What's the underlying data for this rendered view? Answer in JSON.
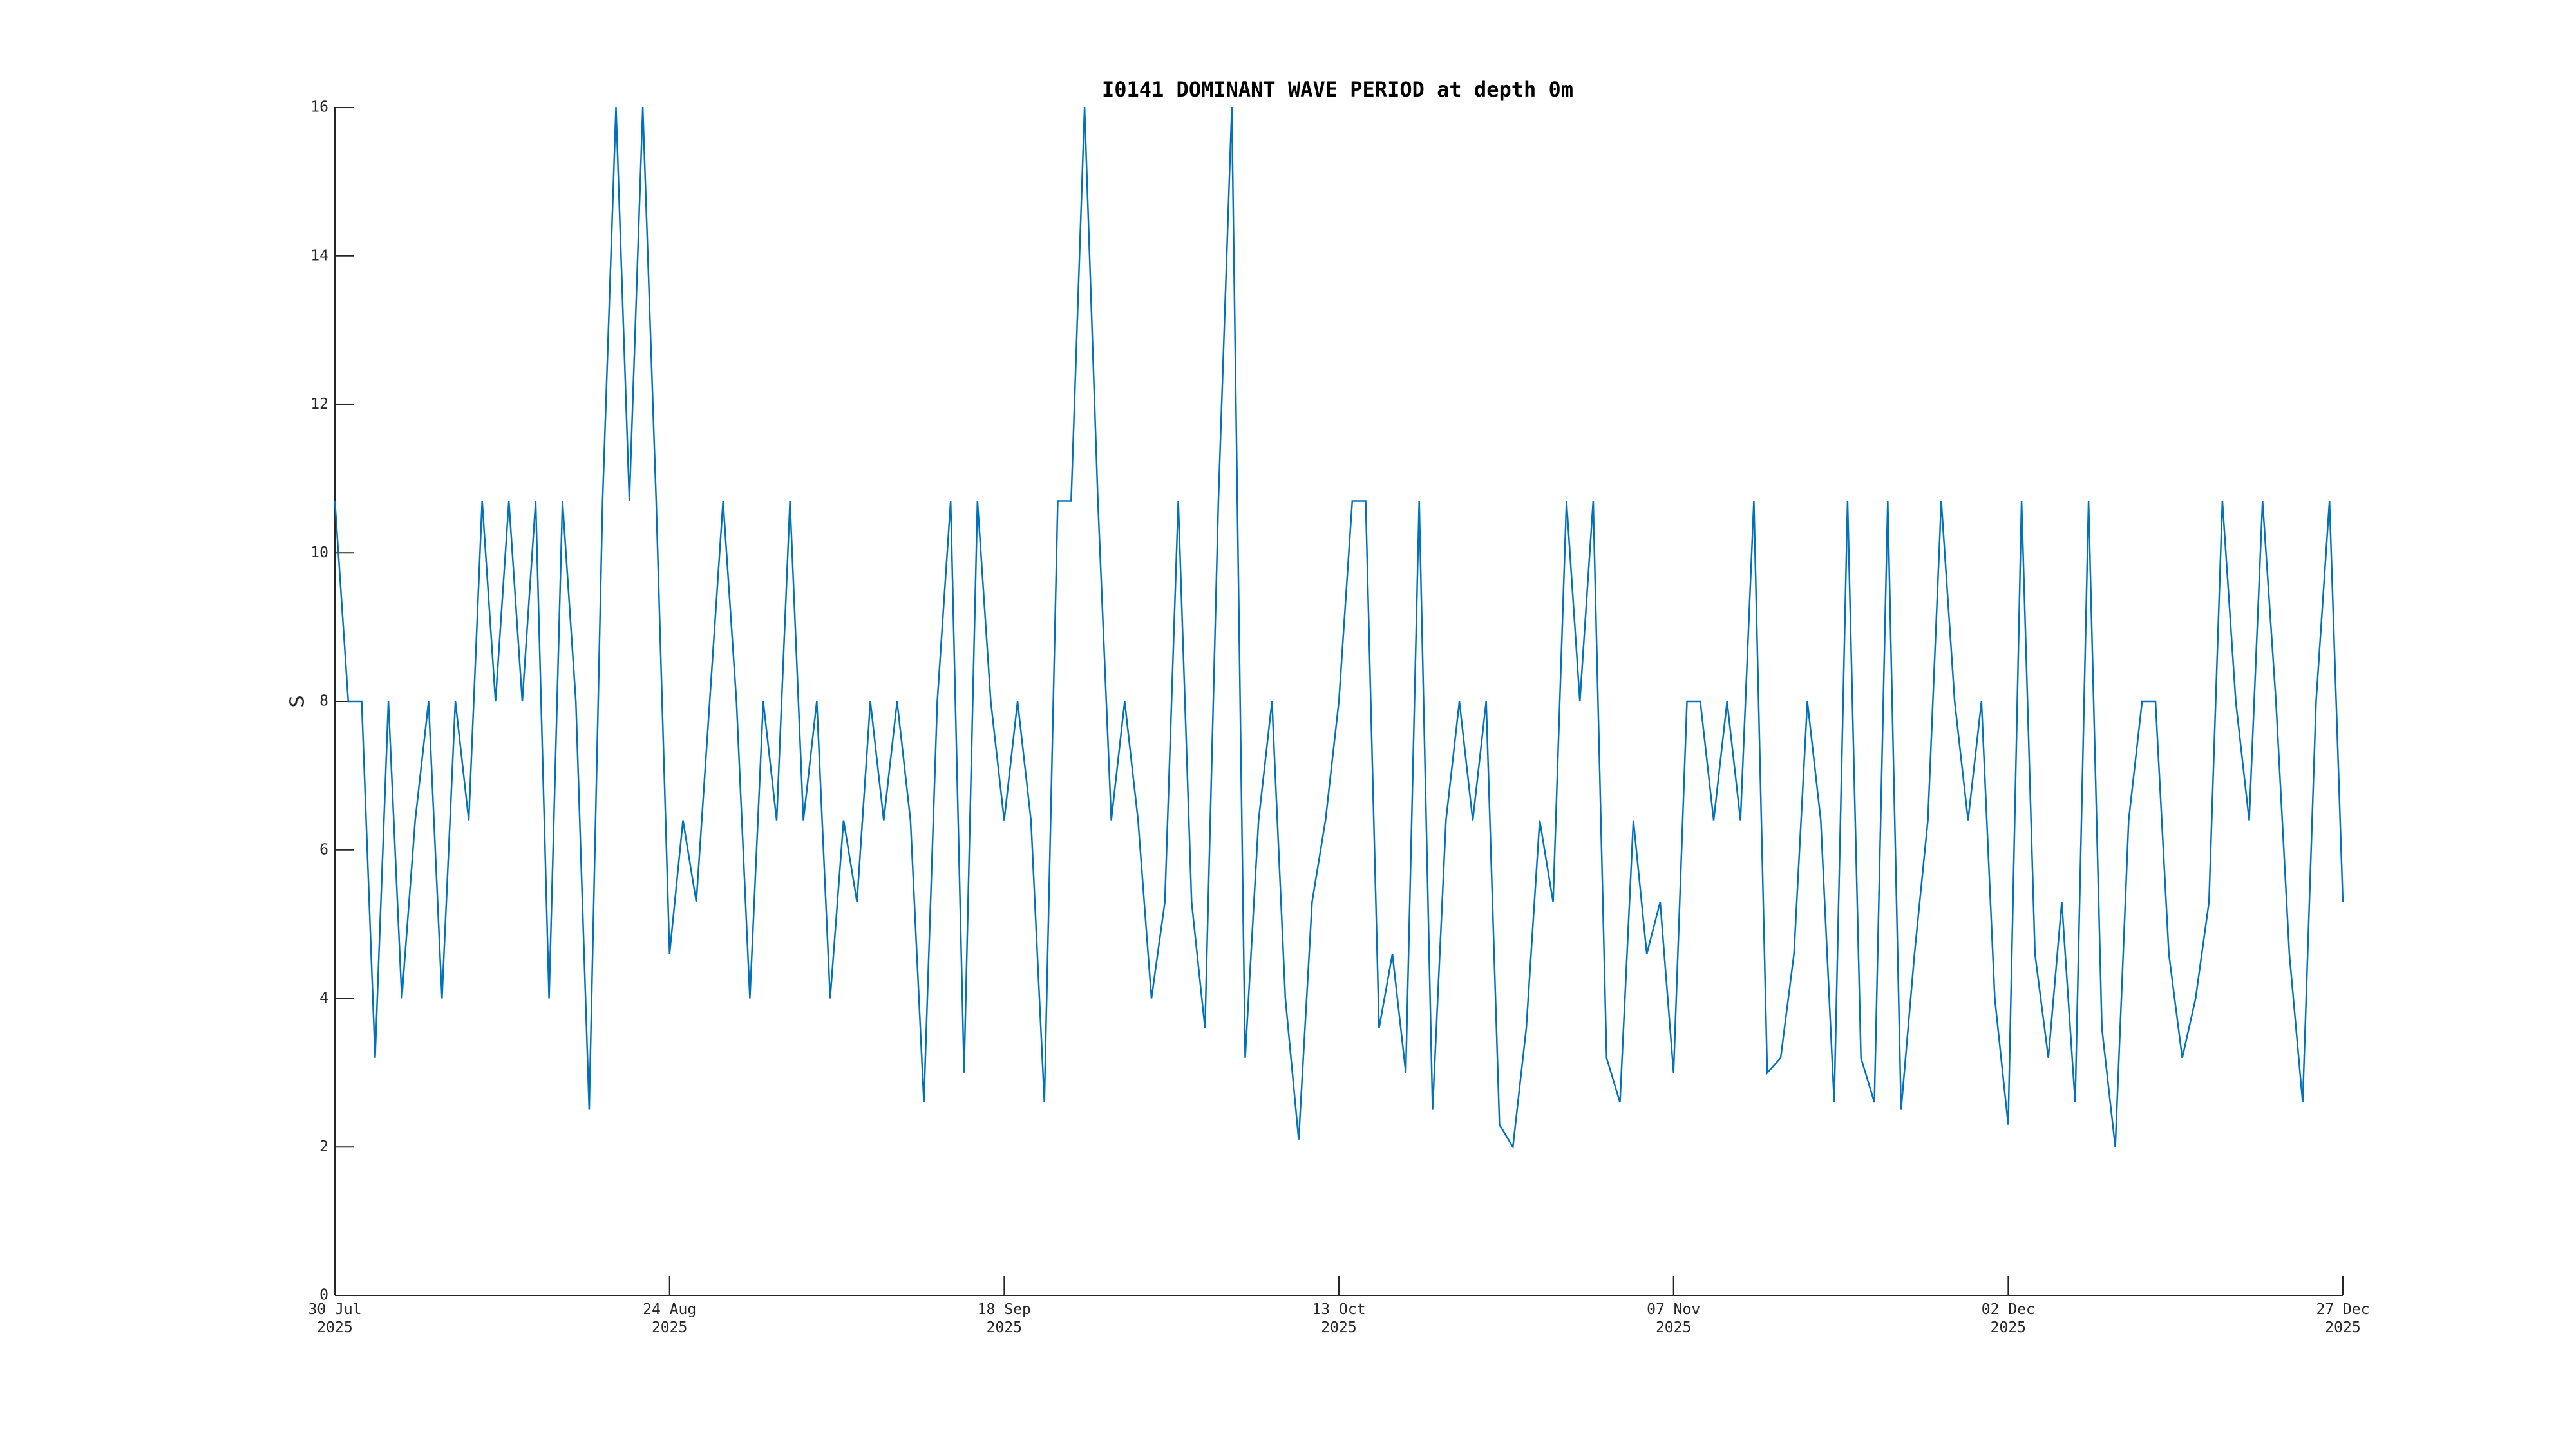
{
  "chart_data": {
    "type": "line",
    "title": "I0141 DOMINANT WAVE PERIOD at depth 0m",
    "y_label": "S",
    "color": "#0072bd",
    "grid": false,
    "xlim": [
      "2025-07-30",
      "2025-12-27"
    ],
    "xticks": [
      {
        "value": "2025-07-30",
        "label": "30 Jul\n2025"
      },
      {
        "value": "2025-08-24",
        "label": "24 Aug\n2025"
      },
      {
        "value": "2025-09-18",
        "label": "18 Sep\n2025"
      },
      {
        "value": "2025-10-13",
        "label": "13 Oct\n2025"
      },
      {
        "value": "2025-11-07",
        "label": "07 Nov\n2025"
      },
      {
        "value": "2025-12-02",
        "label": "02 Dec\n2025"
      },
      {
        "value": "2025-12-27",
        "label": "27 Dec\n2025"
      }
    ],
    "ylim": [
      0,
      16
    ],
    "yticks": [
      0,
      2,
      4,
      6,
      8,
      10,
      12,
      14,
      16
    ],
    "x": [
      "2025-07-30",
      "2025-07-31",
      "2025-08-01",
      "2025-08-02",
      "2025-08-03",
      "2025-08-04",
      "2025-08-05",
      "2025-08-06",
      "2025-08-07",
      "2025-08-08",
      "2025-08-09",
      "2025-08-10",
      "2025-08-11",
      "2025-08-12",
      "2025-08-13",
      "2025-08-14",
      "2025-08-15",
      "2025-08-16",
      "2025-08-17",
      "2025-08-18",
      "2025-08-19",
      "2025-08-20",
      "2025-08-21",
      "2025-08-22",
      "2025-08-23",
      "2025-08-24",
      "2025-08-25",
      "2025-08-26",
      "2025-08-27",
      "2025-08-28",
      "2025-08-29",
      "2025-08-30",
      "2025-08-31",
      "2025-09-01",
      "2025-09-02",
      "2025-09-03",
      "2025-09-04",
      "2025-09-05",
      "2025-09-06",
      "2025-09-07",
      "2025-09-08",
      "2025-09-09",
      "2025-09-10",
      "2025-09-11",
      "2025-09-12",
      "2025-09-13",
      "2025-09-14",
      "2025-09-15",
      "2025-09-16",
      "2025-09-17",
      "2025-09-18",
      "2025-09-19",
      "2025-09-20",
      "2025-09-21",
      "2025-09-22",
      "2025-09-23",
      "2025-09-24",
      "2025-09-25",
      "2025-09-26",
      "2025-09-27",
      "2025-09-28",
      "2025-09-29",
      "2025-09-30",
      "2025-10-01",
      "2025-10-02",
      "2025-10-03",
      "2025-10-04",
      "2025-10-05",
      "2025-10-06",
      "2025-10-07",
      "2025-10-08",
      "2025-10-09",
      "2025-10-10",
      "2025-10-11",
      "2025-10-12",
      "2025-10-13",
      "2025-10-14",
      "2025-10-15",
      "2025-10-16",
      "2025-10-17",
      "2025-10-18",
      "2025-10-19",
      "2025-10-20",
      "2025-10-21",
      "2025-10-22",
      "2025-10-23",
      "2025-10-24",
      "2025-10-25",
      "2025-10-26",
      "2025-10-27",
      "2025-10-28",
      "2025-10-29",
      "2025-10-30",
      "2025-10-31",
      "2025-11-01",
      "2025-11-02",
      "2025-11-03",
      "2025-11-04",
      "2025-11-05",
      "2025-11-06",
      "2025-11-07",
      "2025-11-08",
      "2025-11-09",
      "2025-11-10",
      "2025-11-11",
      "2025-11-12",
      "2025-11-13",
      "2025-11-14",
      "2025-11-15",
      "2025-11-16",
      "2025-11-17",
      "2025-11-18",
      "2025-11-19",
      "2025-11-20",
      "2025-11-21",
      "2025-11-22",
      "2025-11-23",
      "2025-11-24",
      "2025-11-25",
      "2025-11-26",
      "2025-11-27",
      "2025-11-28",
      "2025-11-29",
      "2025-11-30",
      "2025-12-01",
      "2025-12-02",
      "2025-12-03",
      "2025-12-04",
      "2025-12-05",
      "2025-12-06",
      "2025-12-07",
      "2025-12-08",
      "2025-12-09",
      "2025-12-10",
      "2025-12-11",
      "2025-12-12",
      "2025-12-13",
      "2025-12-14",
      "2025-12-15",
      "2025-12-16",
      "2025-12-17",
      "2025-12-18",
      "2025-12-19",
      "2025-12-20",
      "2025-12-21",
      "2025-12-22",
      "2025-12-23",
      "2025-12-24",
      "2025-12-25",
      "2025-12-26",
      "2025-12-27"
    ],
    "values": [
      10.7,
      8,
      8,
      3.2,
      8,
      4,
      6.4,
      8,
      4,
      8,
      6.4,
      10.7,
      8,
      10.7,
      8,
      10.7,
      4,
      10.7,
      8,
      2.5,
      10.7,
      16,
      10.7,
      16,
      10.7,
      4.6,
      6.4,
      5.3,
      8,
      10.7,
      8,
      4,
      8,
      6.4,
      10.7,
      6.4,
      8,
      4,
      6.4,
      5.3,
      8,
      6.4,
      8,
      6.4,
      2.6,
      8,
      10.7,
      3,
      10.7,
      8,
      6.4,
      8,
      6.4,
      2.6,
      10.7,
      10.7,
      16,
      10.7,
      6.4,
      8,
      6.4,
      4,
      5.3,
      10.7,
      5.3,
      3.6,
      10.7,
      16,
      3.2,
      6.4,
      8,
      4,
      2.1,
      5.3,
      6.4,
      8,
      10.7,
      10.7,
      3.6,
      4.6,
      3,
      10.7,
      2.5,
      6.4,
      8,
      6.4,
      8,
      2.3,
      2,
      3.6,
      6.4,
      5.3,
      10.7,
      8,
      10.7,
      3.2,
      2.6,
      6.4,
      4.6,
      5.3,
      3,
      8,
      8,
      6.4,
      8,
      6.4,
      10.7,
      3,
      3.2,
      4.6,
      8,
      6.4,
      2.6,
      10.7,
      3.2,
      2.6,
      10.7,
      2.5,
      4.6,
      6.4,
      10.7,
      8,
      6.4,
      8,
      4,
      2.3,
      10.7,
      4.6,
      3.2,
      5.3,
      2.6,
      10.7,
      3.6,
      2,
      6.4,
      8,
      8,
      4.6,
      3.2,
      4,
      5.3,
      10.7,
      8,
      6.4,
      10.7,
      8,
      4.6,
      2.6,
      8,
      10.7,
      5.3
    ]
  }
}
